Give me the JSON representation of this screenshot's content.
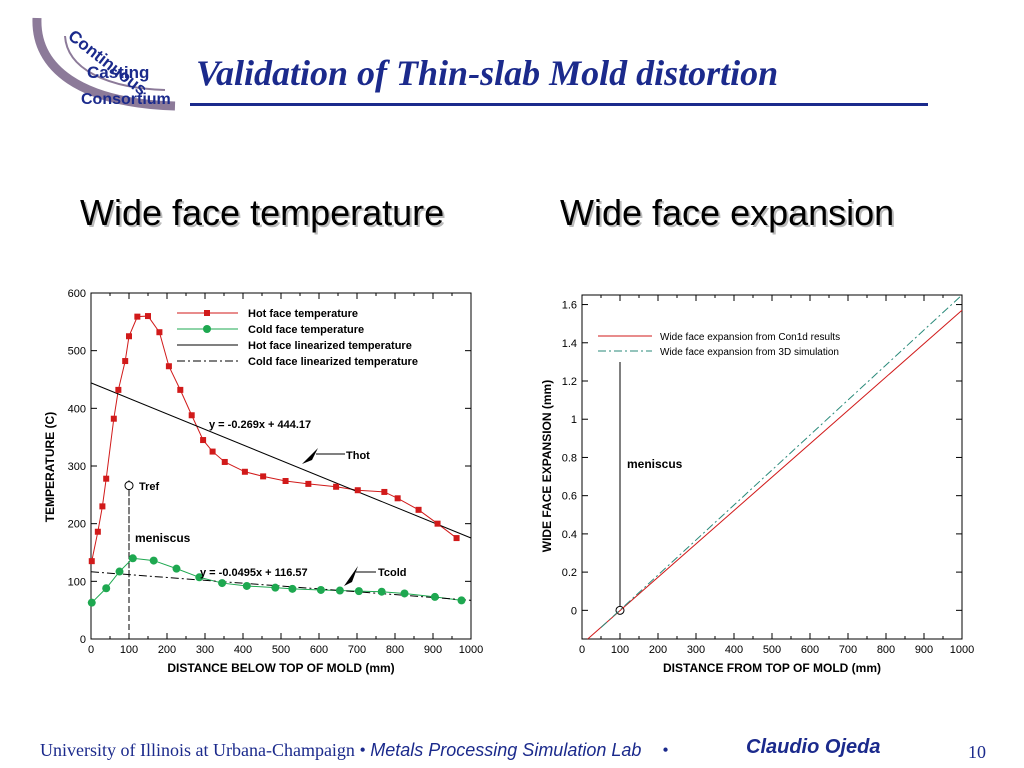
{
  "slide": {
    "logo_text": [
      "Continuous",
      "Casting",
      "Consortium"
    ],
    "title": "Validation of Thin-slab Mold distortion",
    "subtitle_left": "Wide face temperature",
    "subtitle_right": "Wide face expansion",
    "footer_university": "University of Illinois at Urbana-Champaign",
    "footer_separator": "•",
    "footer_lab": "Metals Processing Simulation Lab",
    "footer_author": "Claudio Ojeda",
    "page_number": "10",
    "colors": {
      "title": "#1b2a8c",
      "logo_text": "#1b2a8c",
      "logo_arc": "#8c7a99",
      "hot": "#d11a1a",
      "cold": "#1ea850"
    }
  },
  "chart_data": [
    {
      "type": "line",
      "title": "",
      "xlabel": "DISTANCE BELOW TOP OF MOLD (mm)",
      "ylabel": "TEMPERATURE (C)",
      "xlim": [
        0,
        1000
      ],
      "ylim": [
        0,
        600
      ],
      "xticks": [
        0,
        100,
        200,
        300,
        400,
        500,
        600,
        700,
        800,
        900,
        1000
      ],
      "yticks": [
        0,
        100,
        200,
        300,
        400,
        500,
        600
      ],
      "grid": false,
      "legend_position": "top-right",
      "series": [
        {
          "name": "Hot face temperature",
          "color": "#d11a1a",
          "marker": "square",
          "x": [
            2,
            18,
            30,
            40,
            60,
            72,
            90,
            100,
            122,
            150,
            180,
            205,
            235,
            265,
            295,
            320,
            352,
            405,
            453,
            512,
            572,
            645,
            702,
            772,
            807,
            862,
            912,
            962
          ],
          "y": [
            135,
            186,
            230,
            278,
            382,
            432,
            482,
            525,
            559,
            560,
            532,
            473,
            432,
            388,
            345,
            325,
            307,
            290,
            282,
            274,
            269,
            264,
            258,
            255,
            244,
            224,
            200,
            175
          ]
        },
        {
          "name": "Cold face temperature",
          "color": "#1ea850",
          "marker": "circle",
          "x": [
            2,
            40,
            75,
            110,
            165,
            225,
            285,
            345,
            410,
            485,
            530,
            605,
            655,
            705,
            765,
            825,
            905,
            975
          ],
          "y": [
            63,
            88,
            117,
            140,
            136,
            122,
            107,
            97,
            92,
            89,
            87,
            85,
            84,
            83,
            82,
            79,
            73,
            67
          ]
        },
        {
          "name": "Hot face linearized temperature",
          "color": "#000000",
          "style": "solid",
          "x": [
            0,
            1000
          ],
          "y": [
            444.17,
            175.17
          ]
        },
        {
          "name": "Cold face linearized temperature",
          "color": "#000000",
          "style": "dashdot",
          "x": [
            0,
            1000
          ],
          "y": [
            116.57,
            67.07
          ]
        }
      ],
      "annotations": {
        "hot_equation": "y = -0.269x + 444.17",
        "cold_equation": "y = -0.0495x + 116.57",
        "thot": "Thot",
        "tcold": "Tcold",
        "tref": "Tref",
        "meniscus": "meniscus"
      },
      "meniscus_x": 100,
      "tref_point": {
        "x": 100,
        "y": 266
      }
    },
    {
      "type": "line",
      "title": "",
      "xlabel": "DISTANCE FROM TOP OF MOLD (mm)",
      "ylabel": "WIDE FACE EXPANSION (mm)",
      "xlim": [
        0,
        1000
      ],
      "ylim": [
        -0.15,
        1.65
      ],
      "xticks": [
        0,
        100,
        200,
        300,
        400,
        500,
        600,
        700,
        800,
        900,
        1000
      ],
      "yticks": [
        0,
        0.2,
        0.4,
        0.6,
        0.8,
        1,
        1.2,
        1.4,
        1.6
      ],
      "ytick_labels": [
        "0",
        "0.2",
        "0.4",
        "0.6",
        "0.8",
        "1",
        "1.2",
        "1.4",
        "1.6"
      ],
      "grid": false,
      "legend_position": "top-left",
      "series": [
        {
          "name": "Wide face expansion from Con1d results",
          "color": "#d11a1a",
          "style": "solid",
          "x": [
            15,
            1000
          ],
          "y": [
            -0.15,
            1.57
          ]
        },
        {
          "name": "Wide face expansion from 3D simulation",
          "color": "#2a8a7a",
          "style": "dashdot",
          "x": [
            50,
            1000
          ],
          "y": [
            -0.09,
            1.65
          ]
        }
      ],
      "annotations": {
        "meniscus": "meniscus"
      },
      "meniscus_x": 100,
      "meniscus_point": {
        "x": 100,
        "y": 0
      }
    }
  ]
}
